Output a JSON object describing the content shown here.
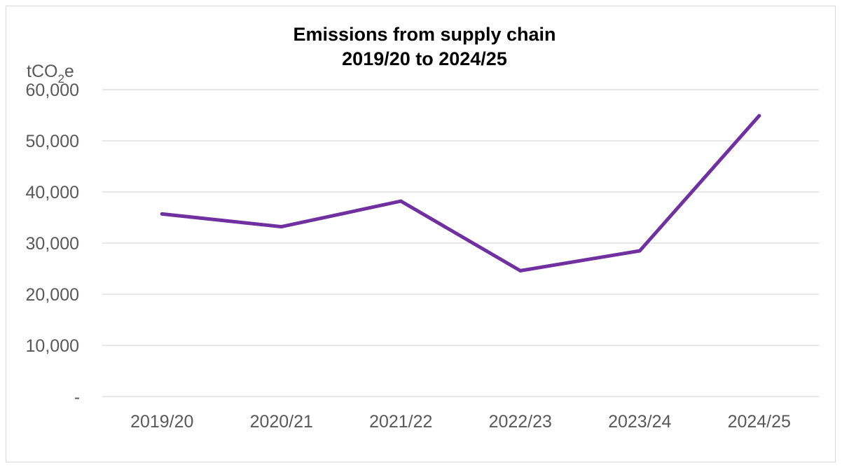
{
  "chart_data": {
    "type": "line",
    "title": "Emissions from supply chain",
    "subtitle": "2019/20 to 2024/25",
    "ylabel_parts": [
      "tCO",
      "2",
      "e"
    ],
    "categories": [
      "2019/20",
      "2020/21",
      "2021/22",
      "2022/23",
      "2023/24",
      "2024/25"
    ],
    "series": [
      {
        "values": [
          35700,
          33200,
          38200,
          24600,
          28500,
          54900
        ],
        "color": "#7030a0"
      }
    ],
    "ylim": [
      0,
      60000
    ],
    "yticks": [
      0,
      10000,
      20000,
      30000,
      40000,
      50000,
      60000
    ],
    "ytick_labels": [
      "-",
      "10,000",
      "20,000",
      "30,000",
      "40,000",
      "50,000",
      "60,000"
    ],
    "grid": true,
    "grid_color": "#d9d9d9",
    "legend": "none"
  }
}
